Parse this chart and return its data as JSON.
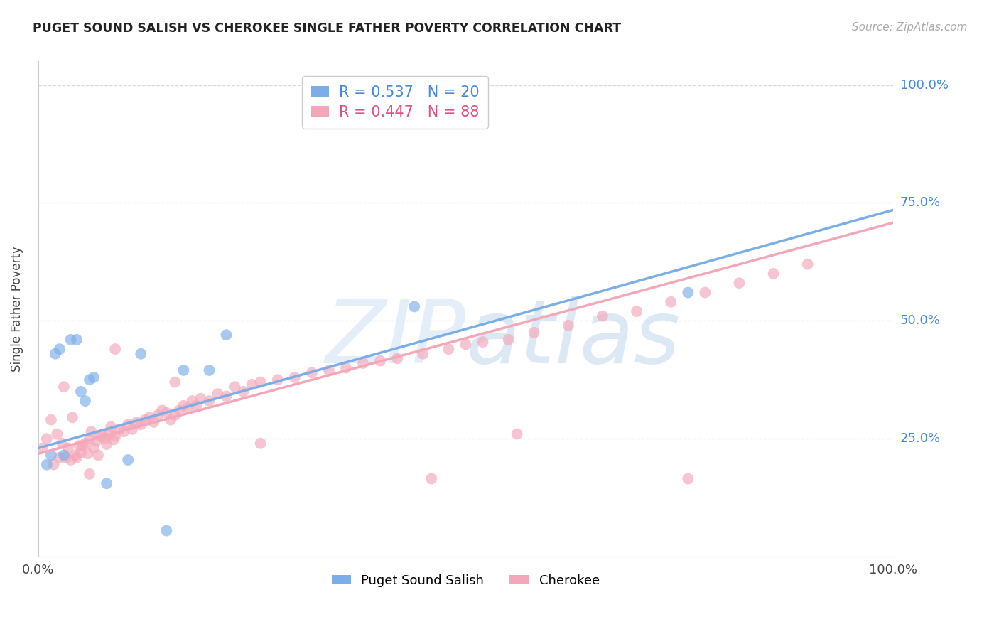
{
  "title": "PUGET SOUND SALISH VS CHEROKEE SINGLE FATHER POVERTY CORRELATION CHART",
  "source": "Source: ZipAtlas.com",
  "ylabel": "Single Father Poverty",
  "ytick_labels": [
    "25.0%",
    "50.0%",
    "75.0%",
    "100.0%"
  ],
  "ytick_values": [
    0.25,
    0.5,
    0.75,
    1.0
  ],
  "xtick_labels": [
    "0.0%",
    "100.0%"
  ],
  "xtick_values": [
    0.0,
    1.0
  ],
  "legend_r_entries": [
    {
      "label": "R = 0.537",
      "n_label": "N = 20",
      "color": "#7baee8"
    },
    {
      "label": "R = 0.447",
      "n_label": "N = 88",
      "color": "#f4a7b9"
    }
  ],
  "bottom_legend": [
    {
      "label": "Puget Sound Salish",
      "color": "#7baee8"
    },
    {
      "label": "Cherokee",
      "color": "#f4a7b9"
    }
  ],
  "puget_x": [
    0.01,
    0.015,
    0.02,
    0.025,
    0.03,
    0.038,
    0.045,
    0.05,
    0.055,
    0.06,
    0.065,
    0.08,
    0.105,
    0.12,
    0.15,
    0.17,
    0.2,
    0.22,
    0.44,
    0.76
  ],
  "puget_y": [
    0.195,
    0.215,
    0.43,
    0.44,
    0.215,
    0.46,
    0.46,
    0.35,
    0.33,
    0.375,
    0.38,
    0.155,
    0.205,
    0.43,
    0.055,
    0.395,
    0.395,
    0.47,
    0.53,
    0.56
  ],
  "puget_color": "#7baee8",
  "puget_reg_slope": 0.505,
  "puget_reg_intercept": 0.23,
  "cherokee_color": "#f4a7b9",
  "cherokee_reg_slope": 0.49,
  "cherokee_reg_intercept": 0.218,
  "cherokee_x": [
    0.005,
    0.01,
    0.015,
    0.018,
    0.022,
    0.025,
    0.028,
    0.032,
    0.035,
    0.038,
    0.04,
    0.043,
    0.045,
    0.048,
    0.05,
    0.052,
    0.055,
    0.058,
    0.06,
    0.062,
    0.065,
    0.068,
    0.07,
    0.073,
    0.075,
    0.078,
    0.08,
    0.083,
    0.085,
    0.088,
    0.09,
    0.095,
    0.1,
    0.105,
    0.11,
    0.115,
    0.12,
    0.125,
    0.13,
    0.135,
    0.14,
    0.145,
    0.15,
    0.155,
    0.16,
    0.165,
    0.17,
    0.175,
    0.18,
    0.185,
    0.19,
    0.2,
    0.21,
    0.22,
    0.23,
    0.24,
    0.25,
    0.26,
    0.28,
    0.3,
    0.32,
    0.34,
    0.36,
    0.38,
    0.4,
    0.42,
    0.45,
    0.48,
    0.5,
    0.52,
    0.55,
    0.58,
    0.62,
    0.66,
    0.7,
    0.74,
    0.78,
    0.82,
    0.86,
    0.9,
    0.03,
    0.06,
    0.09,
    0.16,
    0.26,
    0.46,
    0.56,
    0.76
  ],
  "cherokee_y": [
    0.23,
    0.25,
    0.29,
    0.195,
    0.26,
    0.21,
    0.24,
    0.21,
    0.23,
    0.205,
    0.295,
    0.215,
    0.21,
    0.235,
    0.22,
    0.235,
    0.24,
    0.218,
    0.25,
    0.265,
    0.23,
    0.245,
    0.215,
    0.255,
    0.26,
    0.25,
    0.238,
    0.26,
    0.275,
    0.248,
    0.255,
    0.27,
    0.265,
    0.28,
    0.27,
    0.285,
    0.28,
    0.29,
    0.295,
    0.285,
    0.3,
    0.31,
    0.305,
    0.29,
    0.3,
    0.31,
    0.32,
    0.315,
    0.33,
    0.32,
    0.335,
    0.33,
    0.345,
    0.34,
    0.36,
    0.35,
    0.365,
    0.37,
    0.375,
    0.38,
    0.39,
    0.395,
    0.4,
    0.41,
    0.415,
    0.42,
    0.43,
    0.44,
    0.45,
    0.455,
    0.46,
    0.475,
    0.49,
    0.51,
    0.52,
    0.54,
    0.56,
    0.58,
    0.6,
    0.62,
    0.36,
    0.175,
    0.44,
    0.37,
    0.24,
    0.165,
    0.26,
    0.165
  ],
  "xlim": [
    0.0,
    1.0
  ],
  "ylim": [
    0.0,
    1.05
  ],
  "grid_color": "#d8d8d8",
  "bg_color": "#ffffff"
}
